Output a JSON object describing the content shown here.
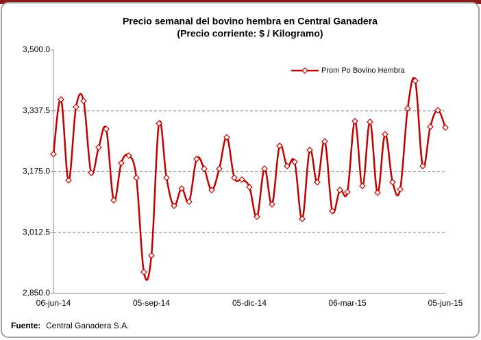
{
  "chart_data": {
    "type": "line",
    "title": "Precio semanal del bovino  hembra en Central Ganadera",
    "subtitle": "(Precio corriente: $ / Kilogramo)",
    "categories": [
      "06-jun-14",
      null,
      null,
      null,
      null,
      null,
      null,
      null,
      null,
      null,
      null,
      null,
      null,
      "05-sep-14",
      null,
      null,
      null,
      null,
      null,
      null,
      null,
      null,
      null,
      null,
      null,
      null,
      "05-dic-14",
      null,
      null,
      null,
      null,
      null,
      null,
      null,
      null,
      null,
      null,
      null,
      null,
      "06-mar-15",
      null,
      null,
      null,
      null,
      null,
      null,
      null,
      null,
      null,
      null,
      null,
      null,
      "05-jun-15"
    ],
    "series": [
      {
        "name": "Prom Po Bovino Hembra",
        "color": "#c00000",
        "values": [
          3222,
          3368,
          3152,
          3348,
          3364,
          3172,
          3240,
          3289,
          3099,
          3198,
          3218,
          3159,
          2907,
          2951,
          3304,
          3159,
          3084,
          3130,
          3095,
          3209,
          3183,
          3126,
          3183,
          3267,
          3159,
          3154,
          3134,
          3055,
          3183,
          3088,
          3244,
          3190,
          3201,
          3049,
          3233,
          3147,
          3256,
          3070,
          3126,
          3121,
          3310,
          3137,
          3308,
          3119,
          3275,
          3147,
          3128,
          3344,
          3418,
          3190,
          3295,
          3339,
          3293
        ]
      }
    ],
    "ylim": [
      2850,
      3500
    ],
    "yticks": [
      {
        "value": 2850,
        "label": "2,850.0"
      },
      {
        "value": 3012.5,
        "label": "3,012.5"
      },
      {
        "value": 3175,
        "label": "3,175.0"
      },
      {
        "value": 3337.5,
        "label": "3,337.5"
      },
      {
        "value": 3500,
        "label": "3,500.0"
      }
    ],
    "grid": true,
    "legend": "upper right",
    "source_label": "Fuente:",
    "source_text": "Central Ganadera S.A."
  }
}
